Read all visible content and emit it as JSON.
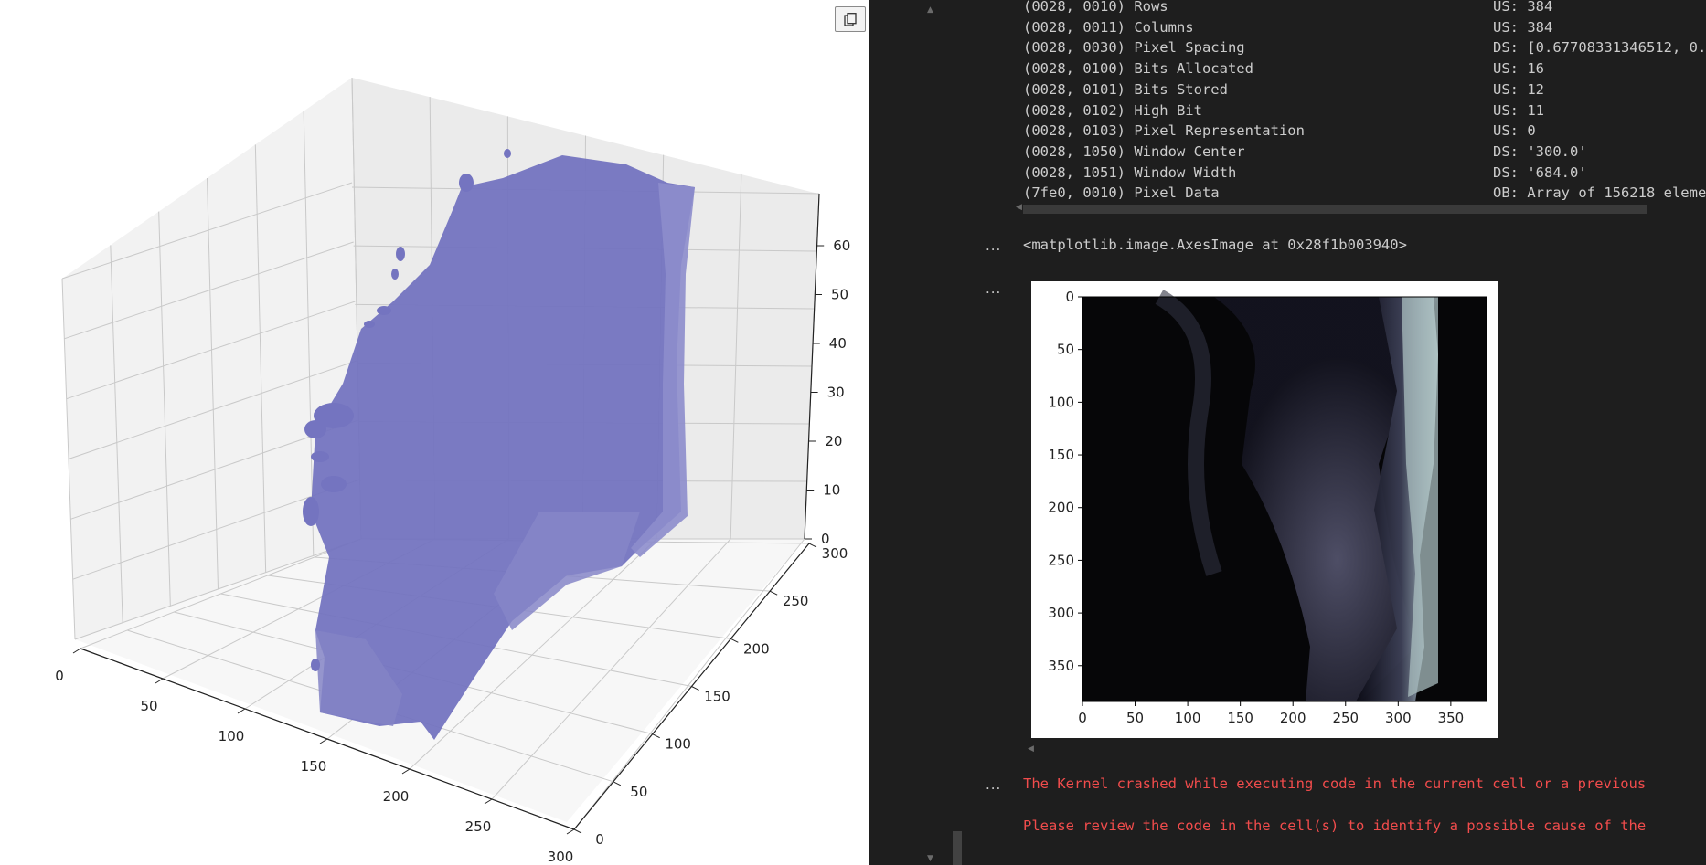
{
  "toolbar": {
    "copy_icon": "copy-icon",
    "save_icon": "save-icon"
  },
  "plot3d": {
    "x_ticks": [
      "0",
      "50",
      "100",
      "150",
      "200",
      "250",
      "300"
    ],
    "y_ticks": [
      "0",
      "50",
      "100",
      "150",
      "200",
      "250",
      "300"
    ],
    "z_ticks": [
      "0",
      "10",
      "20",
      "30",
      "40",
      "50",
      "60"
    ],
    "surface_color": "#7474c0"
  },
  "metadata_rows": [
    {
      "tag": "(0028, 0010) Rows",
      "value": "US: 384"
    },
    {
      "tag": "(0028, 0011) Columns",
      "value": "US: 384"
    },
    {
      "tag": "(0028, 0030) Pixel Spacing",
      "value": "DS: [0.67708331346512, 0."
    },
    {
      "tag": "(0028, 0100) Bits Allocated",
      "value": "US: 16"
    },
    {
      "tag": "(0028, 0101) Bits Stored",
      "value": "US: 12"
    },
    {
      "tag": "(0028, 0102) High Bit",
      "value": "US: 11"
    },
    {
      "tag": "(0028, 0103) Pixel Representation",
      "value": "US: 0"
    },
    {
      "tag": "(0028, 1050) Window Center",
      "value": "DS: '300.0'"
    },
    {
      "tag": "(0028, 1051) Window Width",
      "value": "DS: '684.0'"
    },
    {
      "tag": "(7fe0, 0010) Pixel Data",
      "value": "OB: Array of 156218 eleme"
    }
  ],
  "output_markers": [
    "...",
    "...",
    "..."
  ],
  "axes_image_repr": "<matplotlib.image.AxesImage at 0x28f1b003940>",
  "image_plot": {
    "x_ticks": [
      "0",
      "50",
      "100",
      "150",
      "200",
      "250",
      "300",
      "350"
    ],
    "y_ticks": [
      "0",
      "50",
      "100",
      "150",
      "200",
      "250",
      "300",
      "350"
    ]
  },
  "error": {
    "line1": "The Kernel crashed while executing code in the current cell or a previous",
    "line2": "Please review the code in the cell(s) to identify a possible cause of the",
    "color": "#f14c4c"
  }
}
